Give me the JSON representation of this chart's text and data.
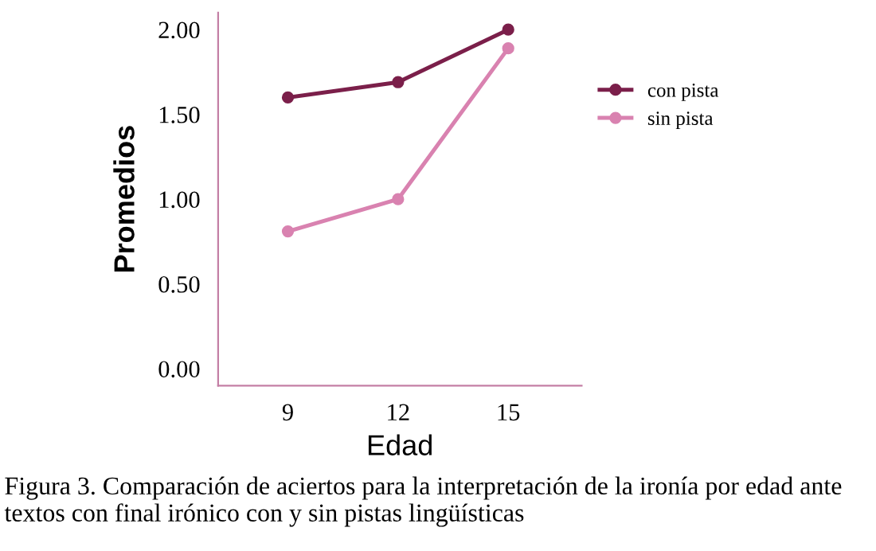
{
  "chart_data": {
    "type": "line",
    "xlabel": "Edad",
    "ylabel": "Promedios",
    "x": [
      9,
      12,
      15
    ],
    "series": [
      {
        "name": "con pista",
        "color": "#7b1f4a",
        "values": [
          1.6,
          1.69,
          2.0
        ]
      },
      {
        "name": "sin pista",
        "color": "#d982b0",
        "values": [
          0.81,
          1.0,
          1.89
        ]
      }
    ],
    "xlim": [
      7.1,
      17
    ],
    "xticks": [
      9,
      12,
      15
    ],
    "ylim": [
      -0.1,
      2.1
    ],
    "yticks": [
      {
        "value": 0,
        "label": "0.00"
      },
      {
        "value": 0.5,
        "label": "0.50"
      },
      {
        "value": 1,
        "label": "1.00"
      },
      {
        "value": 1.5,
        "label": "1.50"
      },
      {
        "value": 2,
        "label": "2.00"
      }
    ],
    "grid": false,
    "legend": "right",
    "marker": "circle",
    "line_style": "solid",
    "annotations": [
      "Figura 3. Comparación de aciertos para la interpretación de la ironía por edad ante textos con final irónico con y sin pistas lingüísticas"
    ]
  }
}
